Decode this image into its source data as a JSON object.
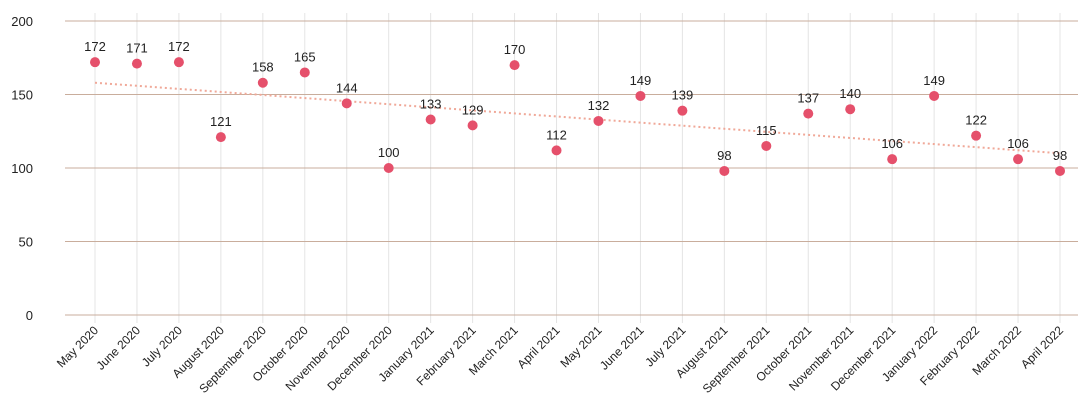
{
  "chart_data": {
    "type": "scatter",
    "categories": [
      "May 2020",
      "June 2020",
      "July 2020",
      "August 2020",
      "September 2020",
      "October 2020",
      "November 2020",
      "December 2020",
      "January 2021",
      "February 2021",
      "March 2021",
      "April 2021",
      "May 2021",
      "June 2021",
      "July 2021",
      "August 2021",
      "September 2021",
      "October 2021",
      "November 2021",
      "December 2021",
      "January 2022",
      "February 2022",
      "March 2022",
      "April 2022"
    ],
    "values": [
      172,
      171,
      172,
      121,
      158,
      165,
      144,
      100,
      133,
      129,
      170,
      112,
      132,
      149,
      139,
      98,
      115,
      137,
      140,
      106,
      149,
      122,
      106,
      98
    ],
    "color": "#e5506b",
    "trendline": {
      "start": 158,
      "end": 110,
      "color": "#f0a898"
    },
    "ylim": [
      0,
      200
    ],
    "yticks": [
      0,
      50,
      100,
      150,
      200
    ],
    "grid": true
  }
}
